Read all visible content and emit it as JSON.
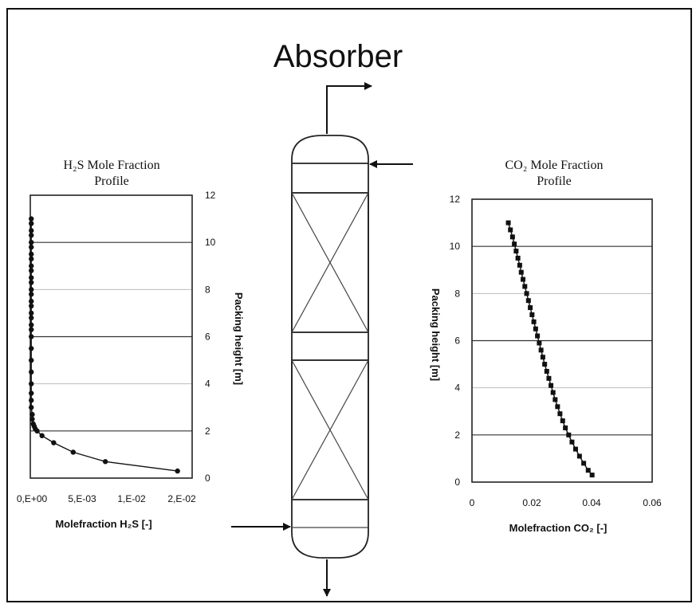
{
  "title": "Absorber",
  "left_plot": {
    "title_line1": "H₂S Mole Fraction",
    "title_line2": "Profile",
    "ylabel": "Packing height [m]",
    "xlabel": "Molefraction H₂S [-]",
    "xtick_labels": [
      "0,E+00",
      "5,E-03",
      "1,E-02",
      "2,E-02"
    ],
    "ytick_labels": [
      "0",
      "2",
      "4",
      "6",
      "8",
      "10",
      "12"
    ]
  },
  "right_plot": {
    "title_line1": "CO₂ Mole Fraction",
    "title_line2": "Profile",
    "ylabel": "Packing height [m]",
    "xlabel": "Molefraction CO₂ [-]",
    "xtick_labels": [
      "0",
      "0.02",
      "0.04",
      "0.06"
    ],
    "ytick_labels": [
      "0",
      "2",
      "4",
      "6",
      "8",
      "10",
      "12"
    ]
  },
  "chart_data": [
    {
      "type": "line",
      "title": "H₂S Mole Fraction Profile",
      "xlabel": "Molefraction H₂S [-]",
      "ylabel": "Packing height [m]",
      "xlim": [
        0,
        0.0166
      ],
      "ylim": [
        0,
        12
      ],
      "y_axis_side": "right",
      "grid": true,
      "x": [
        0.0001,
        0.0001,
        0.0001,
        0.0001,
        0.0001,
        0.0001,
        0.0001,
        0.0001,
        0.0001,
        0.0001,
        0.0001,
        0.0001,
        0.0001,
        0.0001,
        0.0001,
        0.0001,
        0.0001,
        0.0001,
        0.0001,
        0.0001,
        0.0001,
        0.0001,
        0.0001,
        0.0001,
        0.0001,
        0.0001,
        0.0001,
        0.0001,
        0.0002,
        0.0002,
        0.0003,
        0.0004,
        0.0005,
        0.0007,
        0.0012,
        0.0024,
        0.0044,
        0.0077,
        0.0151
      ],
      "y": [
        11.0,
        10.8,
        10.5,
        10.3,
        10.0,
        9.8,
        9.5,
        9.3,
        9.0,
        8.8,
        8.5,
        8.3,
        8.0,
        7.8,
        7.5,
        7.3,
        7.0,
        6.8,
        6.5,
        6.3,
        6.0,
        5.5,
        5.0,
        4.5,
        4.0,
        3.6,
        3.3,
        3.0,
        2.7,
        2.5,
        2.3,
        2.2,
        2.1,
        2.0,
        1.8,
        1.5,
        1.1,
        0.7,
        0.3
      ]
    },
    {
      "type": "line",
      "title": "CO₂ Mole Fraction Profile",
      "xlabel": "Molefraction CO₂ [-]",
      "ylabel": "Packing height [m]",
      "xlim": [
        0,
        0.06
      ],
      "ylim": [
        0,
        12
      ],
      "grid": true,
      "x": [
        0.0121,
        0.0128,
        0.0135,
        0.0141,
        0.0147,
        0.0153,
        0.0159,
        0.0164,
        0.017,
        0.0176,
        0.0182,
        0.0188,
        0.0194,
        0.02,
        0.0206,
        0.0212,
        0.0218,
        0.0224,
        0.023,
        0.0236,
        0.0242,
        0.0249,
        0.0256,
        0.0263,
        0.027,
        0.0277,
        0.0285,
        0.0293,
        0.0302,
        0.0311,
        0.0322,
        0.0333,
        0.0345,
        0.0358,
        0.0372,
        0.0387,
        0.04
      ],
      "y": [
        11.0,
        10.7,
        10.4,
        10.1,
        9.8,
        9.5,
        9.2,
        8.9,
        8.6,
        8.3,
        8.0,
        7.7,
        7.4,
        7.1,
        6.8,
        6.5,
        6.2,
        5.9,
        5.6,
        5.3,
        5.0,
        4.7,
        4.4,
        4.1,
        3.8,
        3.5,
        3.2,
        2.9,
        2.6,
        2.3,
        2.0,
        1.7,
        1.4,
        1.1,
        0.8,
        0.5,
        0.3
      ]
    }
  ]
}
